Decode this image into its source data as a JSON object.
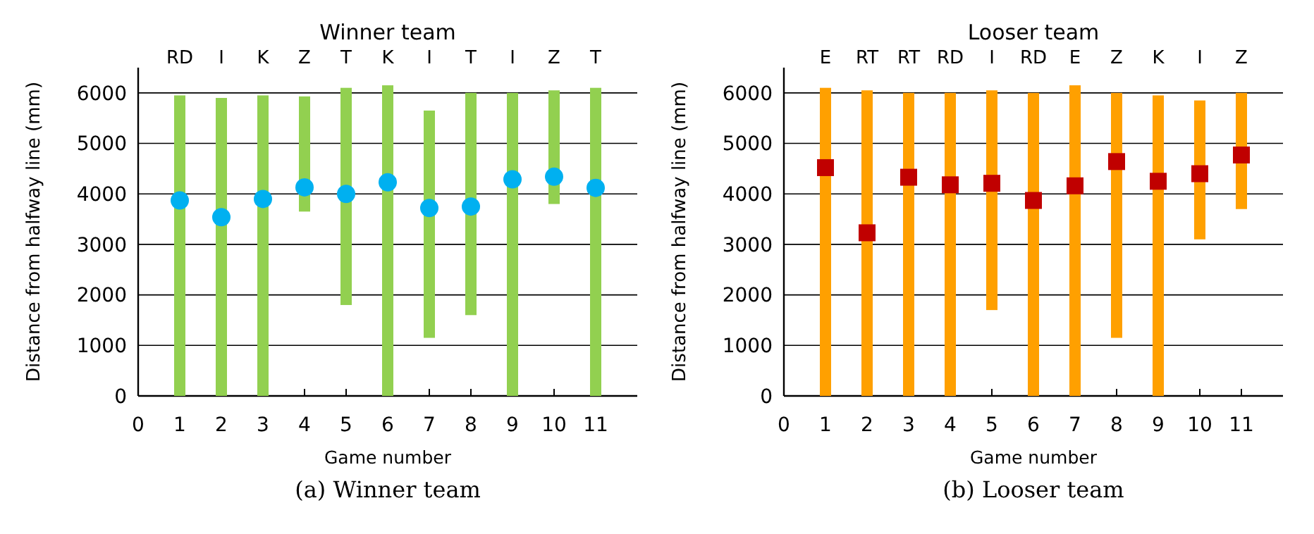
{
  "chart_data": [
    {
      "type": "bar",
      "title": "Winner team",
      "xlabel": "Game number",
      "ylabel": "Distance from halfway line (mm)",
      "x": [
        1,
        2,
        3,
        4,
        5,
        6,
        7,
        8,
        9,
        10,
        11
      ],
      "xlim": [
        0,
        12
      ],
      "xticks": [
        0,
        1,
        2,
        3,
        4,
        5,
        6,
        7,
        8,
        9,
        10,
        11
      ],
      "ylim": [
        0,
        6500
      ],
      "yticks": [
        0,
        1000,
        2000,
        3000,
        4000,
        5000,
        6000
      ],
      "grid": "y",
      "series": [
        {
          "color": "#92d050",
          "base": [
            0,
            0,
            0,
            3650,
            1800,
            0,
            1150,
            1600,
            0,
            3800,
            0
          ],
          "values": [
            5950,
            5900,
            5950,
            2280,
            4300,
            6150,
            4500,
            4400,
            6000,
            2250,
            6100
          ]
        },
        {
          "type": "scatter",
          "color": "#00b0f0",
          "marker": "circle",
          "values": [
            3870,
            3540,
            3900,
            4130,
            4000,
            4230,
            3720,
            3750,
            4290,
            4340,
            4120
          ]
        }
      ],
      "annotations": [
        "RD",
        "I",
        "K",
        "Z",
        "T",
        "K",
        "I",
        "T",
        "I",
        "Z",
        "T",
        "(a) Winner team"
      ]
    },
    {
      "type": "bar",
      "title": "Looser team",
      "xlabel": "Game number",
      "ylabel": "Distance from halfway line (mm)",
      "x": [
        1,
        2,
        3,
        4,
        5,
        6,
        7,
        8,
        9,
        10,
        11
      ],
      "xlim": [
        0,
        12
      ],
      "xticks": [
        0,
        1,
        2,
        3,
        4,
        5,
        6,
        7,
        8,
        9,
        10,
        11
      ],
      "ylim": [
        0,
        6500
      ],
      "yticks": [
        0,
        1000,
        2000,
        3000,
        4000,
        5000,
        6000
      ],
      "grid": "y",
      "series": [
        {
          "color": "#ffa000",
          "base": [
            0,
            0,
            0,
            0,
            1700,
            0,
            0,
            1150,
            0,
            3100,
            3700
          ],
          "values": [
            6100,
            6050,
            6000,
            6000,
            4350,
            6000,
            6150,
            4850,
            5950,
            2750,
            2300
          ]
        },
        {
          "type": "scatter",
          "color": "#c00000",
          "marker": "square",
          "values": [
            4520,
            3230,
            4330,
            4180,
            4210,
            3870,
            4160,
            4640,
            4250,
            4400,
            4770
          ]
        }
      ],
      "annotations": [
        "E",
        "RT",
        "RT",
        "RD",
        "I",
        "RD",
        "E",
        "Z",
        "K",
        "I",
        "Z",
        "(b) Looser team"
      ]
    }
  ]
}
